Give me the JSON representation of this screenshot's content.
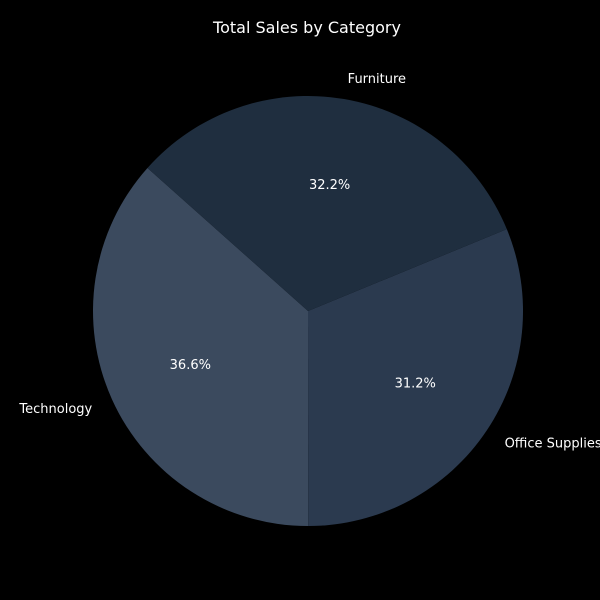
{
  "chart_data": {
    "type": "pie",
    "title": "Total Sales by Category",
    "slices": [
      {
        "label": "Technology",
        "value": 36.6,
        "pct_label": "36.6%",
        "color": "#3b4a5e"
      },
      {
        "label": "Office Supplies",
        "value": 31.2,
        "pct_label": "31.2%",
        "color": "#2b3a4f"
      },
      {
        "label": "Furniture",
        "value": 32.2,
        "pct_label": "32.2%",
        "color": "#1f2e3f"
      }
    ],
    "start_angle_deg": 138.3,
    "direction": "counterclockwise"
  },
  "colors": {
    "background": "#000000",
    "text": "#ffffff"
  }
}
